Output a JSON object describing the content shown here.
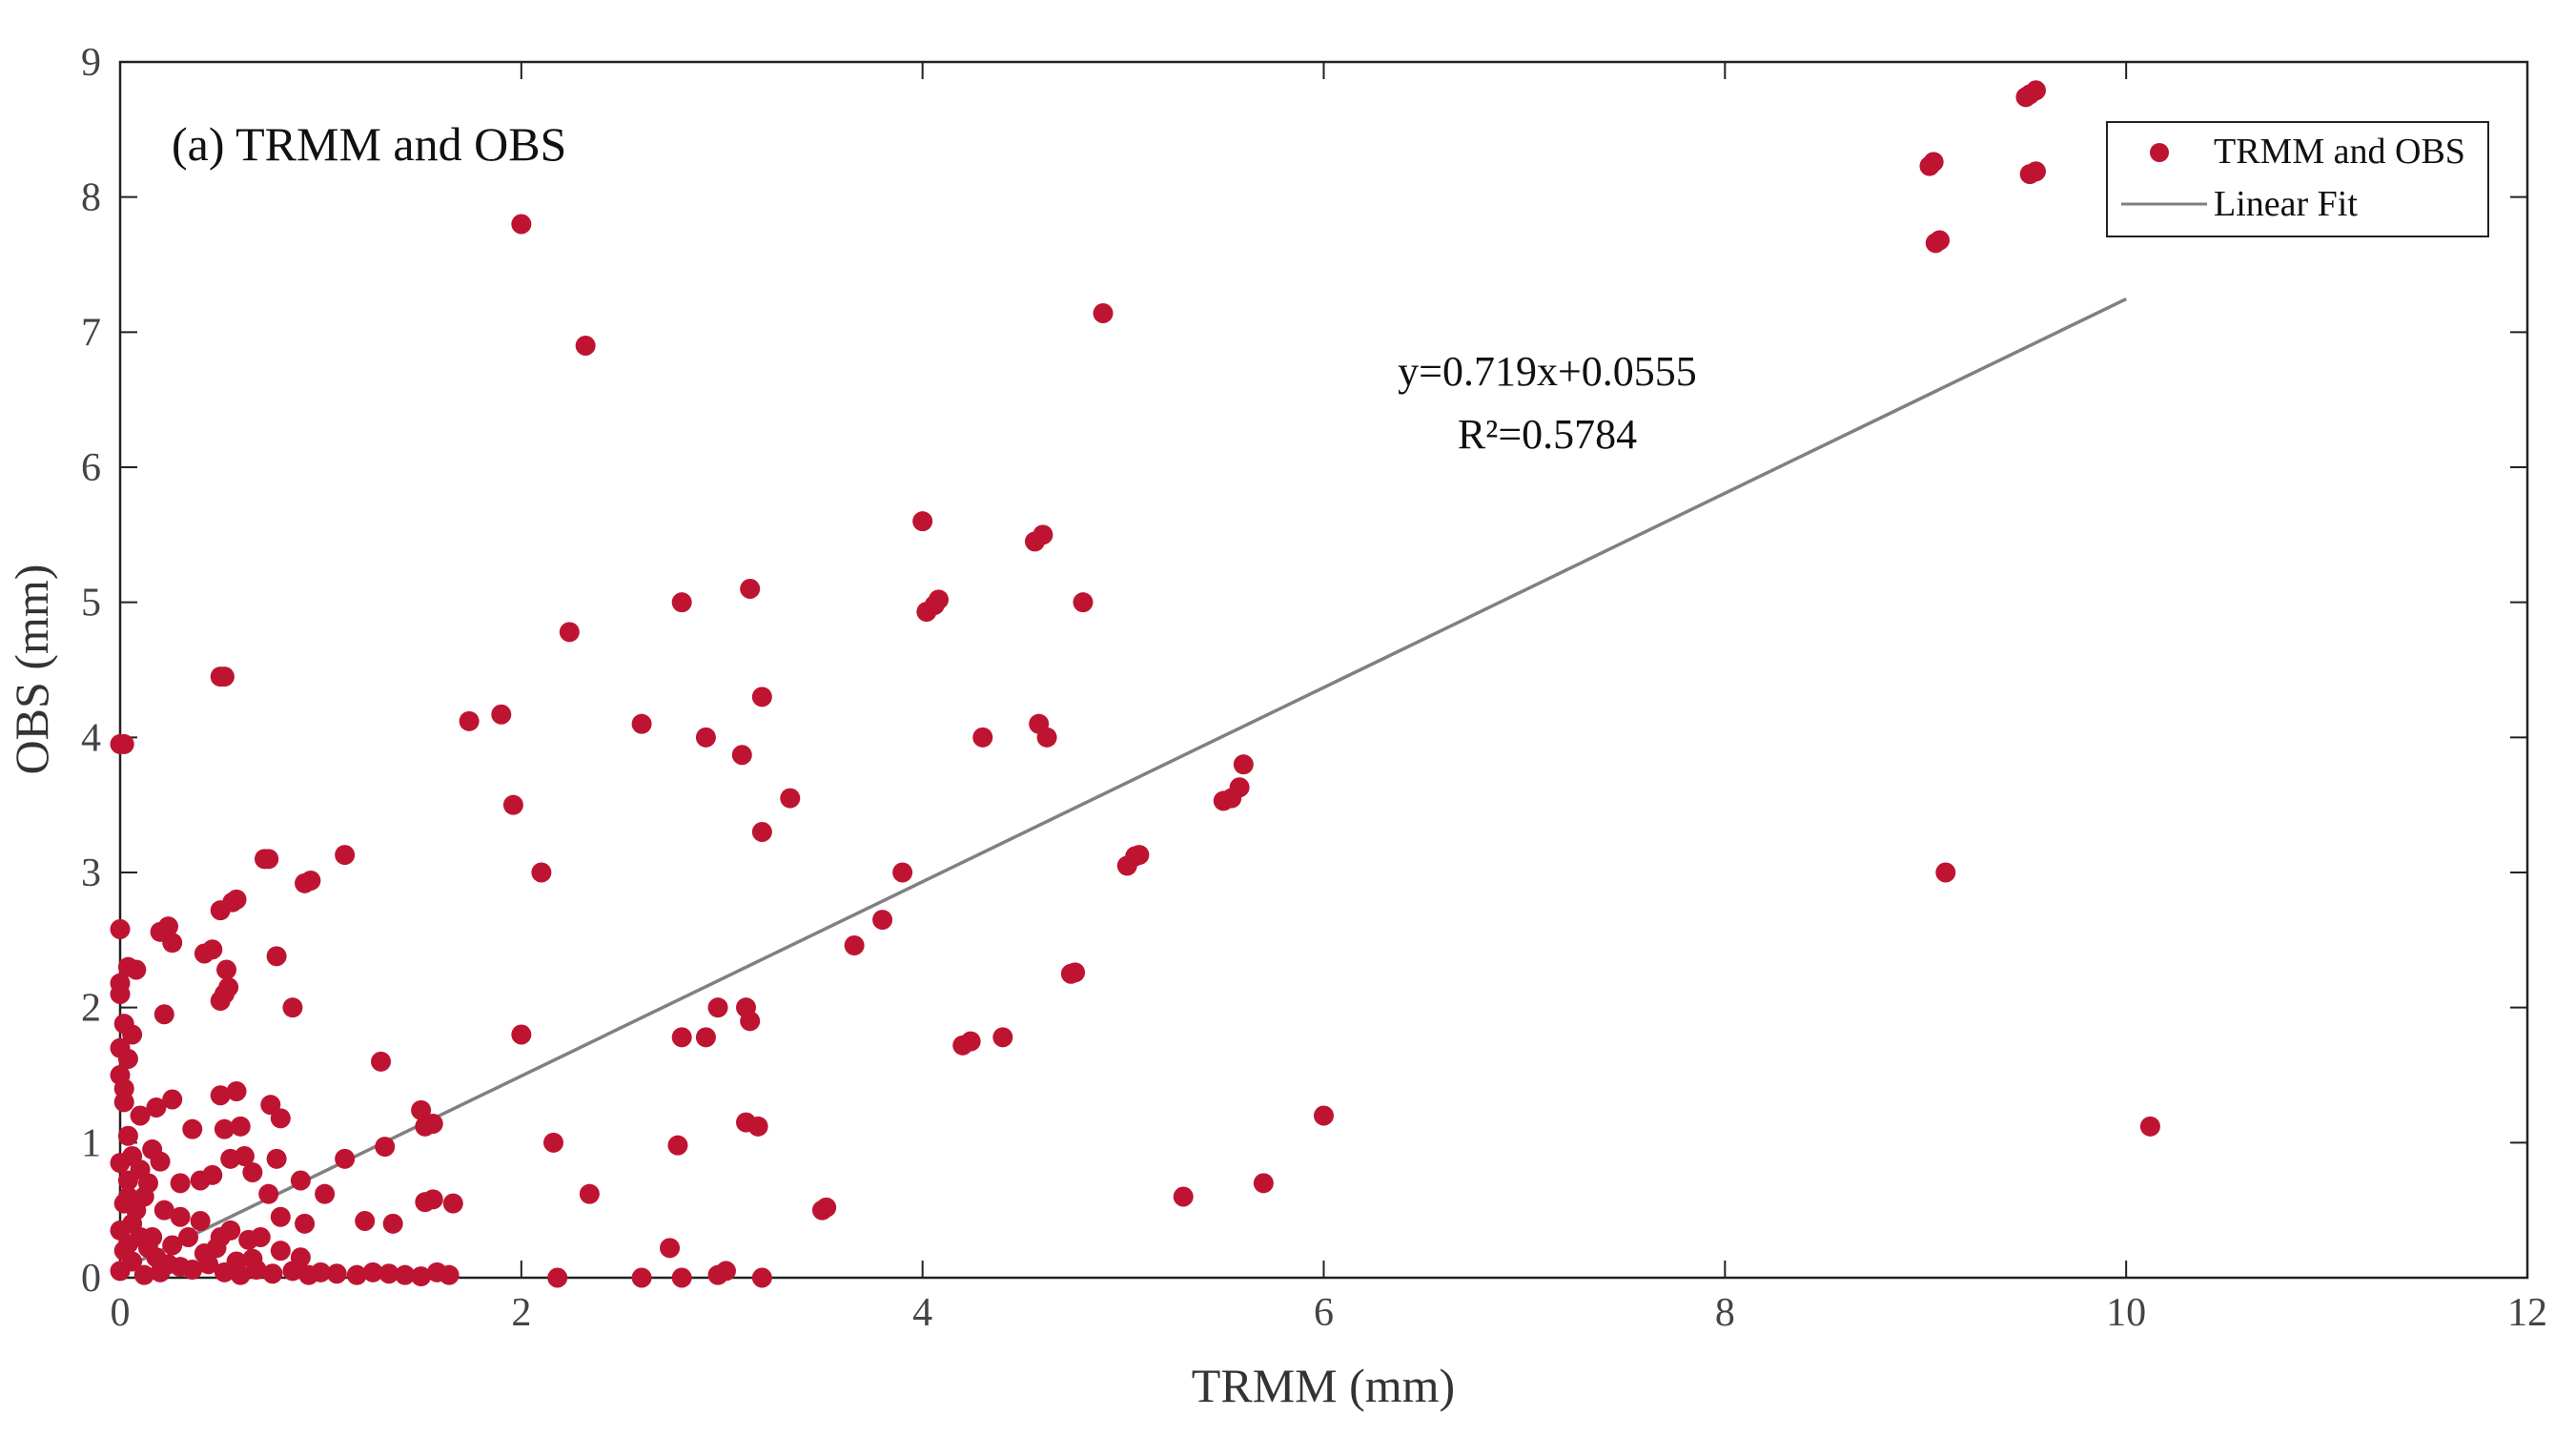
{
  "chart_data": {
    "type": "scatter",
    "title": "(a) TRMM and OBS",
    "xlabel": "TRMM (mm)",
    "ylabel": "OBS (mm)",
    "xlim": [
      0,
      12
    ],
    "ylim": [
      0,
      9
    ],
    "xticks": [
      "0",
      "2",
      "4",
      "6",
      "8",
      "10",
      "12"
    ],
    "yticks": [
      "0",
      "1",
      "2",
      "3",
      "4",
      "5",
      "6",
      "7",
      "8",
      "9"
    ],
    "grid": false,
    "legend": {
      "position": "top-right",
      "entries": [
        {
          "label": "TRMM and OBS",
          "kind": "marker"
        },
        {
          "label": "Linear Fit",
          "kind": "line"
        }
      ]
    },
    "fit": {
      "equation": "y=0.719x+0.0555",
      "r2": "R²=0.5784",
      "slope": 0.719,
      "intercept": 0.0555,
      "x_range": [
        0,
        10
      ]
    },
    "colors": {
      "points": "#BE1432",
      "fit": "#808080",
      "axis": "#222222"
    },
    "series": [
      {
        "name": "TRMM and OBS",
        "points": [
          [
            0,
            3.95
          ],
          [
            0.02,
            3.95
          ],
          [
            0.5,
            4.45
          ],
          [
            0.52,
            4.45
          ],
          [
            0,
            2.58
          ],
          [
            0.04,
            2.3
          ],
          [
            0.08,
            2.28
          ],
          [
            0,
            2.18
          ],
          [
            0,
            2.1
          ],
          [
            0.02,
            1.88
          ],
          [
            0.06,
            1.8
          ],
          [
            0,
            1.7
          ],
          [
            0.04,
            1.62
          ],
          [
            0.2,
            2.56
          ],
          [
            0.24,
            2.6
          ],
          [
            0.26,
            2.48
          ],
          [
            0.42,
            2.4
          ],
          [
            0.46,
            2.43
          ],
          [
            0.53,
            2.28
          ],
          [
            0.54,
            2.15
          ],
          [
            0.5,
            2.05
          ],
          [
            0.52,
            2.1
          ],
          [
            0.5,
            2.72
          ],
          [
            0.56,
            2.78
          ],
          [
            0.58,
            2.8
          ],
          [
            0.72,
            3.1
          ],
          [
            0.74,
            3.1
          ],
          [
            0.92,
            2.92
          ],
          [
            0.95,
            2.94
          ],
          [
            1.12,
            3.13
          ],
          [
            0.78,
            2.38
          ],
          [
            0.86,
            2.0
          ],
          [
            0.22,
            1.95
          ],
          [
            0.5,
            1.35
          ],
          [
            0.58,
            1.38
          ],
          [
            0.6,
            1.12
          ],
          [
            0.52,
            1.1
          ],
          [
            0.75,
            1.28
          ],
          [
            0.8,
            1.18
          ],
          [
            0.26,
            1.32
          ],
          [
            0.18,
            1.26
          ],
          [
            0.36,
            1.1
          ],
          [
            0.1,
            1.2
          ],
          [
            0.16,
            0.95
          ],
          [
            0.2,
            0.86
          ],
          [
            0.3,
            0.7
          ],
          [
            0.4,
            0.72
          ],
          [
            0.46,
            0.76
          ],
          [
            0.55,
            0.88
          ],
          [
            0.62,
            0.9
          ],
          [
            0.78,
            0.88
          ],
          [
            0.66,
            0.78
          ],
          [
            0.74,
            0.62
          ],
          [
            0.9,
            0.72
          ],
          [
            1.02,
            0.62
          ],
          [
            0.8,
            0.45
          ],
          [
            0.92,
            0.4
          ],
          [
            1.12,
            0.88
          ],
          [
            1.22,
            0.42
          ],
          [
            1.3,
            1.6
          ],
          [
            1.36,
            0.4
          ],
          [
            1.32,
            0.97
          ],
          [
            1.5,
            1.24
          ],
          [
            1.52,
            1.12
          ],
          [
            1.56,
            1.14
          ],
          [
            1.52,
            0.56
          ],
          [
            1.56,
            0.58
          ],
          [
            1.66,
            0.55
          ],
          [
            0.12,
            0.6
          ],
          [
            0.22,
            0.5
          ],
          [
            0.3,
            0.45
          ],
          [
            0.4,
            0.42
          ],
          [
            0.5,
            0.3
          ],
          [
            0.55,
            0.35
          ],
          [
            0.64,
            0.28
          ],
          [
            0.7,
            0.3
          ],
          [
            0.8,
            0.2
          ],
          [
            0.9,
            0.15
          ],
          [
            0.06,
            0.9
          ],
          [
            0.1,
            0.8
          ],
          [
            0.14,
            0.7
          ],
          [
            0.04,
            0.6
          ],
          [
            0.08,
            0.5
          ],
          [
            0.06,
            0.4
          ],
          [
            0.1,
            0.3
          ],
          [
            0.02,
            0.2
          ],
          [
            0.14,
            0.22
          ],
          [
            0.18,
            0.15
          ],
          [
            0.24,
            0.1
          ],
          [
            0.3,
            0.08
          ],
          [
            0.36,
            0.06
          ],
          [
            0.44,
            0.1
          ],
          [
            0.52,
            0.04
          ],
          [
            0.6,
            0.02
          ],
          [
            0.68,
            0.06
          ],
          [
            0.76,
            0.03
          ],
          [
            0.86,
            0.05
          ],
          [
            0.94,
            0.02
          ],
          [
            1.0,
            0.04
          ],
          [
            1.08,
            0.03
          ],
          [
            1.18,
            0.02
          ],
          [
            1.26,
            0.04
          ],
          [
            1.34,
            0.03
          ],
          [
            1.42,
            0.02
          ],
          [
            1.5,
            0.01
          ],
          [
            1.58,
            0.04
          ],
          [
            1.64,
            0.02
          ],
          [
            0.02,
            1.4
          ],
          [
            0.0,
            1.5
          ],
          [
            0.02,
            1.3
          ],
          [
            0.04,
            1.05
          ],
          [
            0.0,
            0.85
          ],
          [
            0.04,
            0.72
          ],
          [
            0.02,
            0.55
          ],
          [
            0.0,
            0.35
          ],
          [
            0.04,
            0.25
          ],
          [
            0.06,
            0.12
          ],
          [
            0.0,
            0.05
          ],
          [
            0.12,
            0.02
          ],
          [
            0.2,
            0.04
          ],
          [
            0.16,
            0.3
          ],
          [
            0.26,
            0.24
          ],
          [
            0.34,
            0.3
          ],
          [
            0.42,
            0.18
          ],
          [
            0.48,
            0.22
          ],
          [
            0.58,
            0.12
          ],
          [
            0.66,
            0.14
          ],
          [
            2.0,
            7.8
          ],
          [
            2.32,
            6.9
          ],
          [
            2.24,
            4.78
          ],
          [
            2.6,
            4.1
          ],
          [
            2.8,
            5.0
          ],
          [
            3.14,
            5.1
          ],
          [
            3.2,
            4.3
          ],
          [
            2.92,
            4.0
          ],
          [
            3.1,
            3.87
          ],
          [
            3.34,
            3.55
          ],
          [
            3.2,
            3.3
          ],
          [
            1.74,
            4.12
          ],
          [
            1.9,
            4.17
          ],
          [
            1.96,
            3.5
          ],
          [
            2.1,
            3.0
          ],
          [
            2.0,
            1.8
          ],
          [
            2.16,
            1.0
          ],
          [
            2.34,
            0.62
          ],
          [
            2.74,
            0.22
          ],
          [
            2.78,
            0.98
          ],
          [
            2.8,
            1.78
          ],
          [
            2.92,
            1.78
          ],
          [
            2.98,
            2.0
          ],
          [
            3.12,
            2.0
          ],
          [
            3.14,
            1.9
          ],
          [
            3.12,
            1.15
          ],
          [
            3.18,
            1.12
          ],
          [
            2.18,
            0.0
          ],
          [
            2.6,
            0.0
          ],
          [
            2.8,
            0.0
          ],
          [
            2.98,
            0.02
          ],
          [
            3.02,
            0.05
          ],
          [
            3.2,
            0.0
          ],
          [
            3.5,
            0.5
          ],
          [
            3.52,
            0.52
          ],
          [
            3.66,
            2.46
          ],
          [
            3.8,
            2.65
          ],
          [
            3.9,
            3.0
          ],
          [
            4.0,
            5.6
          ],
          [
            4.02,
            4.93
          ],
          [
            4.06,
            4.98
          ],
          [
            4.08,
            5.02
          ],
          [
            4.3,
            4.0
          ],
          [
            4.56,
            5.45
          ],
          [
            4.6,
            5.5
          ],
          [
            4.58,
            4.1
          ],
          [
            4.62,
            4.0
          ],
          [
            4.8,
            5.0
          ],
          [
            4.2,
            1.72
          ],
          [
            4.24,
            1.75
          ],
          [
            4.4,
            1.78
          ],
          [
            4.74,
            2.25
          ],
          [
            4.76,
            2.26
          ],
          [
            4.9,
            7.14
          ],
          [
            5.02,
            3.05
          ],
          [
            5.06,
            3.12
          ],
          [
            5.08,
            3.13
          ],
          [
            5.5,
            3.53
          ],
          [
            5.54,
            3.55
          ],
          [
            5.58,
            3.63
          ],
          [
            5.6,
            3.8
          ],
          [
            5.3,
            0.6
          ],
          [
            5.7,
            0.7
          ],
          [
            6.0,
            1.2
          ],
          [
            9.02,
            8.23
          ],
          [
            9.04,
            8.26
          ],
          [
            9.05,
            7.66
          ],
          [
            9.07,
            7.68
          ],
          [
            9.5,
            8.74
          ],
          [
            9.52,
            8.76
          ],
          [
            9.55,
            8.79
          ],
          [
            9.52,
            8.17
          ],
          [
            9.55,
            8.19
          ],
          [
            9.1,
            3.0
          ],
          [
            10.12,
            1.12
          ]
        ]
      }
    ]
  }
}
